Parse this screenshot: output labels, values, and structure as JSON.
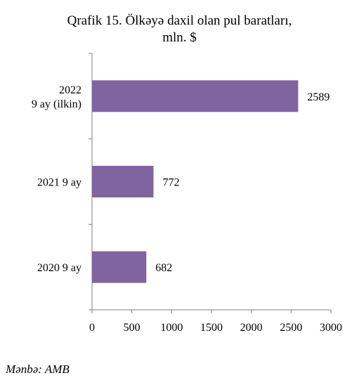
{
  "title_lines": [
    "Qrafik 15. Ölkəyə daxil olan pul baratları,",
    "mln. $"
  ],
  "source": "Mənbə: AMB",
  "chart_data": {
    "type": "bar",
    "orientation": "horizontal",
    "categories": [
      [
        "2022",
        "9 ay (ilkin)"
      ],
      [
        "2021 9 ay"
      ],
      [
        "2020 9 ay"
      ]
    ],
    "values": [
      2589,
      772,
      682
    ],
    "data_labels": [
      "2589",
      "772",
      "682"
    ],
    "x_ticks": [
      0,
      500,
      1000,
      1500,
      2000,
      2500,
      3000
    ],
    "xlim": [
      0,
      3000
    ],
    "grid": false,
    "bar_color": "#8064a2"
  }
}
